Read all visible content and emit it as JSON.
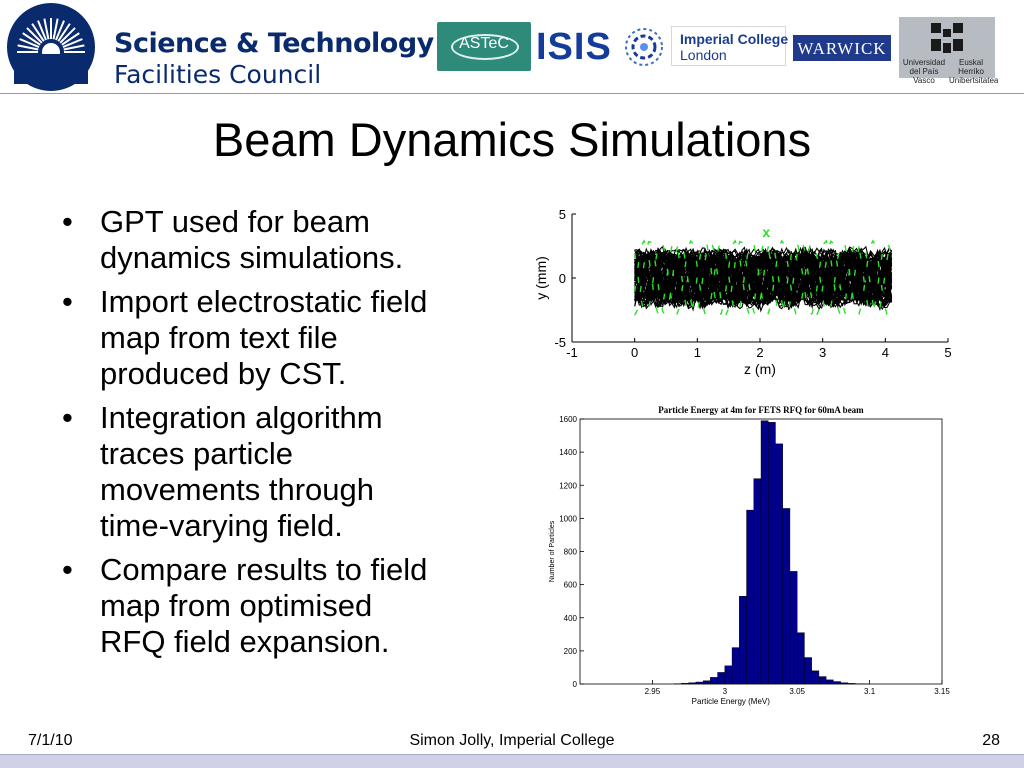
{
  "header": {
    "stfc": {
      "line1": "Science & Technology",
      "line2": "Facilities Council",
      "icon": "sunburst-icon"
    },
    "partners": {
      "astec": "ASTeC",
      "isis": "ISIS",
      "imperial_line1": "Imperial College",
      "imperial_line2": "London",
      "warwick": "WARWICK",
      "upv_left": "Universidad del País Vasco",
      "upv_right": "Euskal Herriko Unibertsitatea"
    }
  },
  "slide": {
    "title": "Beam Dynamics Simulations",
    "bullets": [
      {
        "lines": [
          "GPT used for beam",
          "dynamics simulations."
        ]
      },
      {
        "lines": [
          "Import electrostatic field",
          "map from text file",
          "produced by CST."
        ]
      },
      {
        "lines": [
          "Integration algorithm",
          "traces particle",
          "movements through",
          "time-varying field."
        ]
      },
      {
        "lines": [
          "Compare results to field",
          "map from optimised",
          "RFQ field expansion."
        ]
      }
    ]
  },
  "figures": {
    "trajectory": {
      "xlabel": "z (m)",
      "ylabel": "y (mm)",
      "xticks": [
        "-1",
        "0",
        "1",
        "2",
        "3",
        "4",
        "5"
      ],
      "yticks": [
        "5",
        "0",
        "-5"
      ],
      "marker": "x",
      "colors": {
        "particles": "#000000",
        "highlight": "#2adf2a"
      }
    },
    "histogram": {
      "title": "Particle Energy at 4m for FETS RFQ for 60mA beam",
      "xlabel": "Particle Energy (MeV)",
      "ylabel": "Number of Particles",
      "xticks": [
        "2.95",
        "3",
        "3.05",
        "3.1",
        "3.15"
      ],
      "yticks": [
        "0",
        "200",
        "400",
        "600",
        "800",
        "1000",
        "1200",
        "1400",
        "1600"
      ],
      "bar_color": "#00008b"
    }
  },
  "chart_data": [
    {
      "type": "line",
      "xlabel": "z (m)",
      "ylabel": "y (mm)",
      "xlim": [
        -1,
        5
      ],
      "ylim": [
        -5,
        5
      ],
      "x_range_of_particles": [
        0,
        4.1
      ],
      "envelope_mm": [
        -2.6,
        2.6
      ],
      "grid": false,
      "legend": "none"
    },
    {
      "type": "bar",
      "title": "Particle Energy at 4m for FETS RFQ for 60mA beam",
      "xlabel": "Particle Energy (MeV)",
      "ylabel": "Number of Particles",
      "xlim": [
        2.9,
        3.15
      ],
      "ylim": [
        0,
        1600
      ],
      "bin_width": 0.005,
      "bin_starts": [
        2.965,
        2.97,
        2.975,
        2.98,
        2.985,
        2.99,
        2.995,
        3.0,
        3.005,
        3.01,
        3.015,
        3.02,
        3.025,
        3.03,
        3.035,
        3.04,
        3.045,
        3.05,
        3.055,
        3.06,
        3.065,
        3.07,
        3.075,
        3.08,
        3.085,
        3.09,
        3.095
      ],
      "values": [
        2,
        5,
        8,
        12,
        20,
        40,
        70,
        110,
        220,
        530,
        1050,
        1240,
        1590,
        1580,
        1450,
        1060,
        680,
        310,
        160,
        80,
        45,
        25,
        15,
        8,
        4,
        2,
        1
      ],
      "grid": false,
      "legend": "none"
    }
  ],
  "footer": {
    "date": "7/1/10",
    "author": "Simon Jolly, Imperial College",
    "page": "28"
  }
}
